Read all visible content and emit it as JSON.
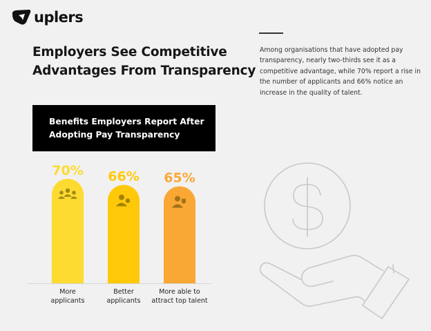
{
  "brand": {
    "name": "uplers"
  },
  "header": {
    "title_line1": "Employers See Competitive",
    "title_line2": "Advantages From Transparency"
  },
  "description": "Among organisations that have adopted pay transparency, nearly two-thirds see it as a competitive advantage, while 70% report a rise in the number of applicants and 66% notice an increase in the quality of talent.",
  "decoration": {
    "icon": "hand-holding-dollar-icon",
    "color": "#c8c8c8"
  },
  "chart_data": {
    "type": "bar",
    "title_line1": "Benefits Employers Report After",
    "title_line2": "Adopting Pay Transparency",
    "categories": [
      "More applicants",
      "Better applicants",
      "More able to attract top talent"
    ],
    "category_lines": [
      [
        "More",
        "applicants"
      ],
      [
        "Better",
        "applicants"
      ],
      [
        "More able to",
        "attract top talent"
      ]
    ],
    "values": [
      70,
      66,
      65
    ],
    "value_labels": [
      "70%",
      "66%",
      "65%"
    ],
    "unit": "%",
    "colors": [
      "#fddb30",
      "#ffc90a",
      "#f9a835"
    ],
    "icons": [
      "group-icon",
      "user-check-icon",
      "user-badge-icon"
    ],
    "ylim": [
      0,
      100
    ],
    "grid": false,
    "legend": "none"
  }
}
